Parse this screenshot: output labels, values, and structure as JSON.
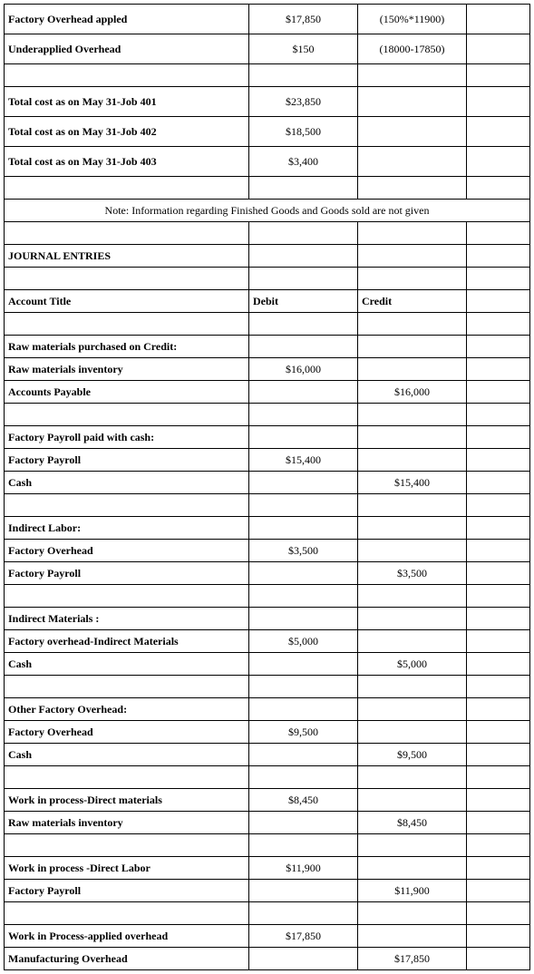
{
  "top": {
    "r1": {
      "label": "Factory Overhead appled",
      "val": "$17,850",
      "note": "(150%*11900)"
    },
    "r2": {
      "label": "Underapplied Overhead",
      "val": "$150",
      "note": "(18000-17850)"
    }
  },
  "totals": {
    "r1": {
      "label": "Total cost as on May 31-Job 401",
      "val": "$23,850"
    },
    "r2": {
      "label": "Total cost as on May 31-Job 402",
      "val": "$18,500"
    },
    "r3": {
      "label": "Total cost as on May 31-Job 403",
      "val": "$3,400"
    }
  },
  "note": "Note: Information regarding Finished Goods and Goods sold are not given",
  "journal_header": "JOURNAL ENTRIES",
  "headers": {
    "title": "Account Title",
    "debit": "Debit",
    "credit": "Credit"
  },
  "entries": {
    "e1": {
      "h": "Raw materials purchased on Credit:",
      "d_label": "Raw materials inventory",
      "d_val": "$16,000",
      "c_label": "Accounts Payable",
      "c_val": "$16,000"
    },
    "e2": {
      "h": "Factory Payroll paid with cash:",
      "d_label": "Factory Payroll",
      "d_val": "$15,400",
      "c_label": "Cash",
      "c_val": "$15,400"
    },
    "e3": {
      "h": "Indirect Labor:",
      "d_label": "Factory Overhead",
      "d_val": "$3,500",
      "c_label": "Factory Payroll",
      "c_val": "$3,500"
    },
    "e4": {
      "h": "Indirect Materials :",
      "d_label": "Factory overhead-Indirect Materials",
      "d_val": "$5,000",
      "c_label": "Cash",
      "c_val": "$5,000"
    },
    "e5": {
      "h": "Other Factory Overhead:",
      "d_label": "Factory Overhead",
      "d_val": "$9,500",
      "c_label": "Cash",
      "c_val": "$9,500"
    },
    "e6": {
      "d_label": "Work in process-Direct materials",
      "d_val": "$8,450",
      "c_label": "Raw materials inventory",
      "c_val": "$8,450"
    },
    "e7": {
      "d_label": "Work in process -Direct Labor",
      "d_val": "$11,900",
      "c_label": "Factory Payroll",
      "c_val": "$11,900"
    },
    "e8": {
      "d_label": "Work in Process-applied overhead",
      "d_val": "$17,850",
      "c_label": "Manufacturing Overhead",
      "c_val": "$17,850"
    }
  }
}
